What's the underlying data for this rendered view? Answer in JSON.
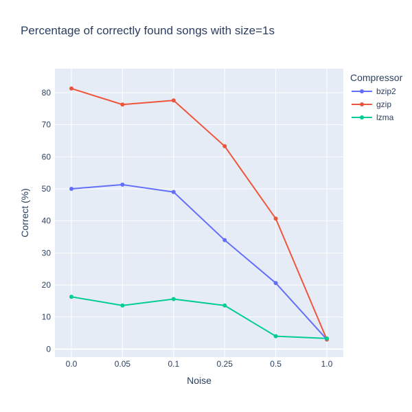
{
  "chart_data": {
    "type": "line",
    "title": "Percentage of correctly found songs with size=1s",
    "xlabel": "Noise",
    "ylabel": "Correct (%)",
    "categories": [
      "0.0",
      "0.05",
      "0.1",
      "0.25",
      "0.5",
      "1.0"
    ],
    "yticks": [
      0,
      10,
      20,
      30,
      40,
      50,
      60,
      70,
      80
    ],
    "ylim": [
      -2.5,
      87.5
    ],
    "grid": true,
    "legend": {
      "title": "Compressor",
      "placement": "top-right"
    },
    "series": [
      {
        "name": "bzip2",
        "color": "#636efa",
        "values": [
          50.0,
          51.3,
          49.0,
          34.0,
          20.6,
          3.0
        ]
      },
      {
        "name": "gzip",
        "color": "#ef553b",
        "values": [
          81.3,
          76.3,
          77.6,
          63.3,
          40.7,
          3.0
        ]
      },
      {
        "name": "lzma",
        "color": "#00cc96",
        "values": [
          16.3,
          13.6,
          15.6,
          13.6,
          4.0,
          3.3
        ]
      }
    ]
  }
}
